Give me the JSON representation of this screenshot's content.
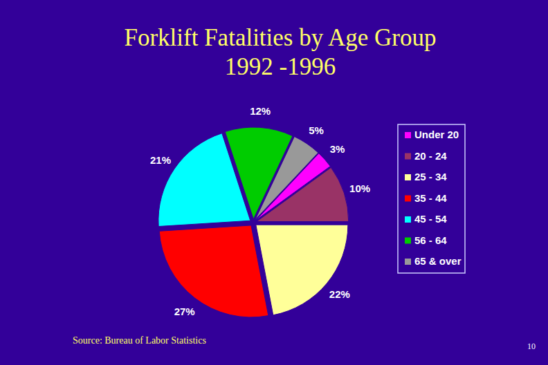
{
  "chart_data": {
    "type": "pie",
    "title": "Forklift Fatalities by Age Group",
    "subtitle": "1992 -1996",
    "categories": [
      "Under 20",
      "20 - 24",
      "25 - 34",
      "35 - 44",
      "45 - 54",
      "56 - 64",
      "65 & over"
    ],
    "values": [
      3,
      10,
      22,
      27,
      21,
      12,
      5
    ],
    "value_labels": [
      "3%",
      "10%",
      "22%",
      "27%",
      "21%",
      "12%",
      "5%"
    ],
    "colors": [
      "#ff00ff",
      "#993366",
      "#ffff99",
      "#ff0000",
      "#00ffff",
      "#00cc00",
      "#999999"
    ],
    "data_labels": true,
    "legend": "right",
    "annotations": [
      "Source: Bureau of Labor Statistics",
      "10"
    ]
  }
}
